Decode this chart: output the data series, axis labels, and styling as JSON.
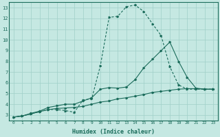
{
  "xlabel": "Humidex (Indice chaleur)",
  "ylabel": "",
  "xlim": [
    -0.5,
    23.5
  ],
  "ylim": [
    2.5,
    13.5
  ],
  "xticks": [
    0,
    1,
    2,
    3,
    4,
    5,
    6,
    7,
    8,
    9,
    10,
    11,
    12,
    13,
    14,
    15,
    16,
    17,
    18,
    19,
    20,
    21,
    22,
    23
  ],
  "yticks": [
    3,
    4,
    5,
    6,
    7,
    8,
    9,
    10,
    11,
    12,
    13
  ],
  "background_color": "#c5e8e2",
  "grid_color": "#9fcfc8",
  "line_color": "#1a6b5a",
  "line1_x": [
    0,
    1,
    2,
    3,
    4,
    5,
    6,
    7,
    8,
    9,
    10,
    11,
    12,
    13,
    14,
    15,
    16,
    17,
    18,
    19,
    20,
    21,
    22,
    23
  ],
  "line1_y": [
    2.8,
    2.9,
    3.1,
    3.3,
    3.5,
    3.6,
    3.65,
    3.7,
    3.8,
    4.0,
    4.2,
    4.3,
    4.5,
    4.6,
    4.75,
    4.9,
    5.1,
    5.2,
    5.3,
    5.4,
    5.45,
    5.45,
    5.4,
    5.4
  ],
  "line2_x": [
    0,
    1,
    2,
    3,
    4,
    5,
    6,
    7,
    8,
    9,
    10,
    11,
    12,
    13,
    14,
    15,
    16,
    17,
    18,
    19,
    20,
    21,
    22,
    23
  ],
  "line2_y": [
    2.8,
    2.9,
    3.15,
    3.35,
    3.7,
    3.85,
    4.0,
    4.0,
    4.3,
    4.6,
    5.4,
    5.55,
    5.5,
    5.6,
    6.3,
    7.4,
    8.2,
    9.0,
    9.8,
    8.0,
    6.5,
    5.5,
    5.4,
    5.4
  ],
  "line3_x": [
    0,
    1,
    2,
    3,
    4,
    5,
    6,
    7,
    8,
    9,
    10,
    11,
    12,
    13,
    14,
    15,
    16,
    17,
    18,
    19,
    20,
    21,
    22,
    23
  ],
  "line3_y": [
    2.8,
    2.9,
    3.1,
    3.3,
    3.5,
    3.5,
    3.4,
    3.25,
    4.4,
    4.5,
    7.6,
    12.1,
    12.2,
    13.1,
    13.25,
    12.65,
    11.5,
    10.4,
    7.5,
    5.8,
    5.4,
    5.4,
    5.4,
    5.4
  ],
  "line3_style": "--"
}
